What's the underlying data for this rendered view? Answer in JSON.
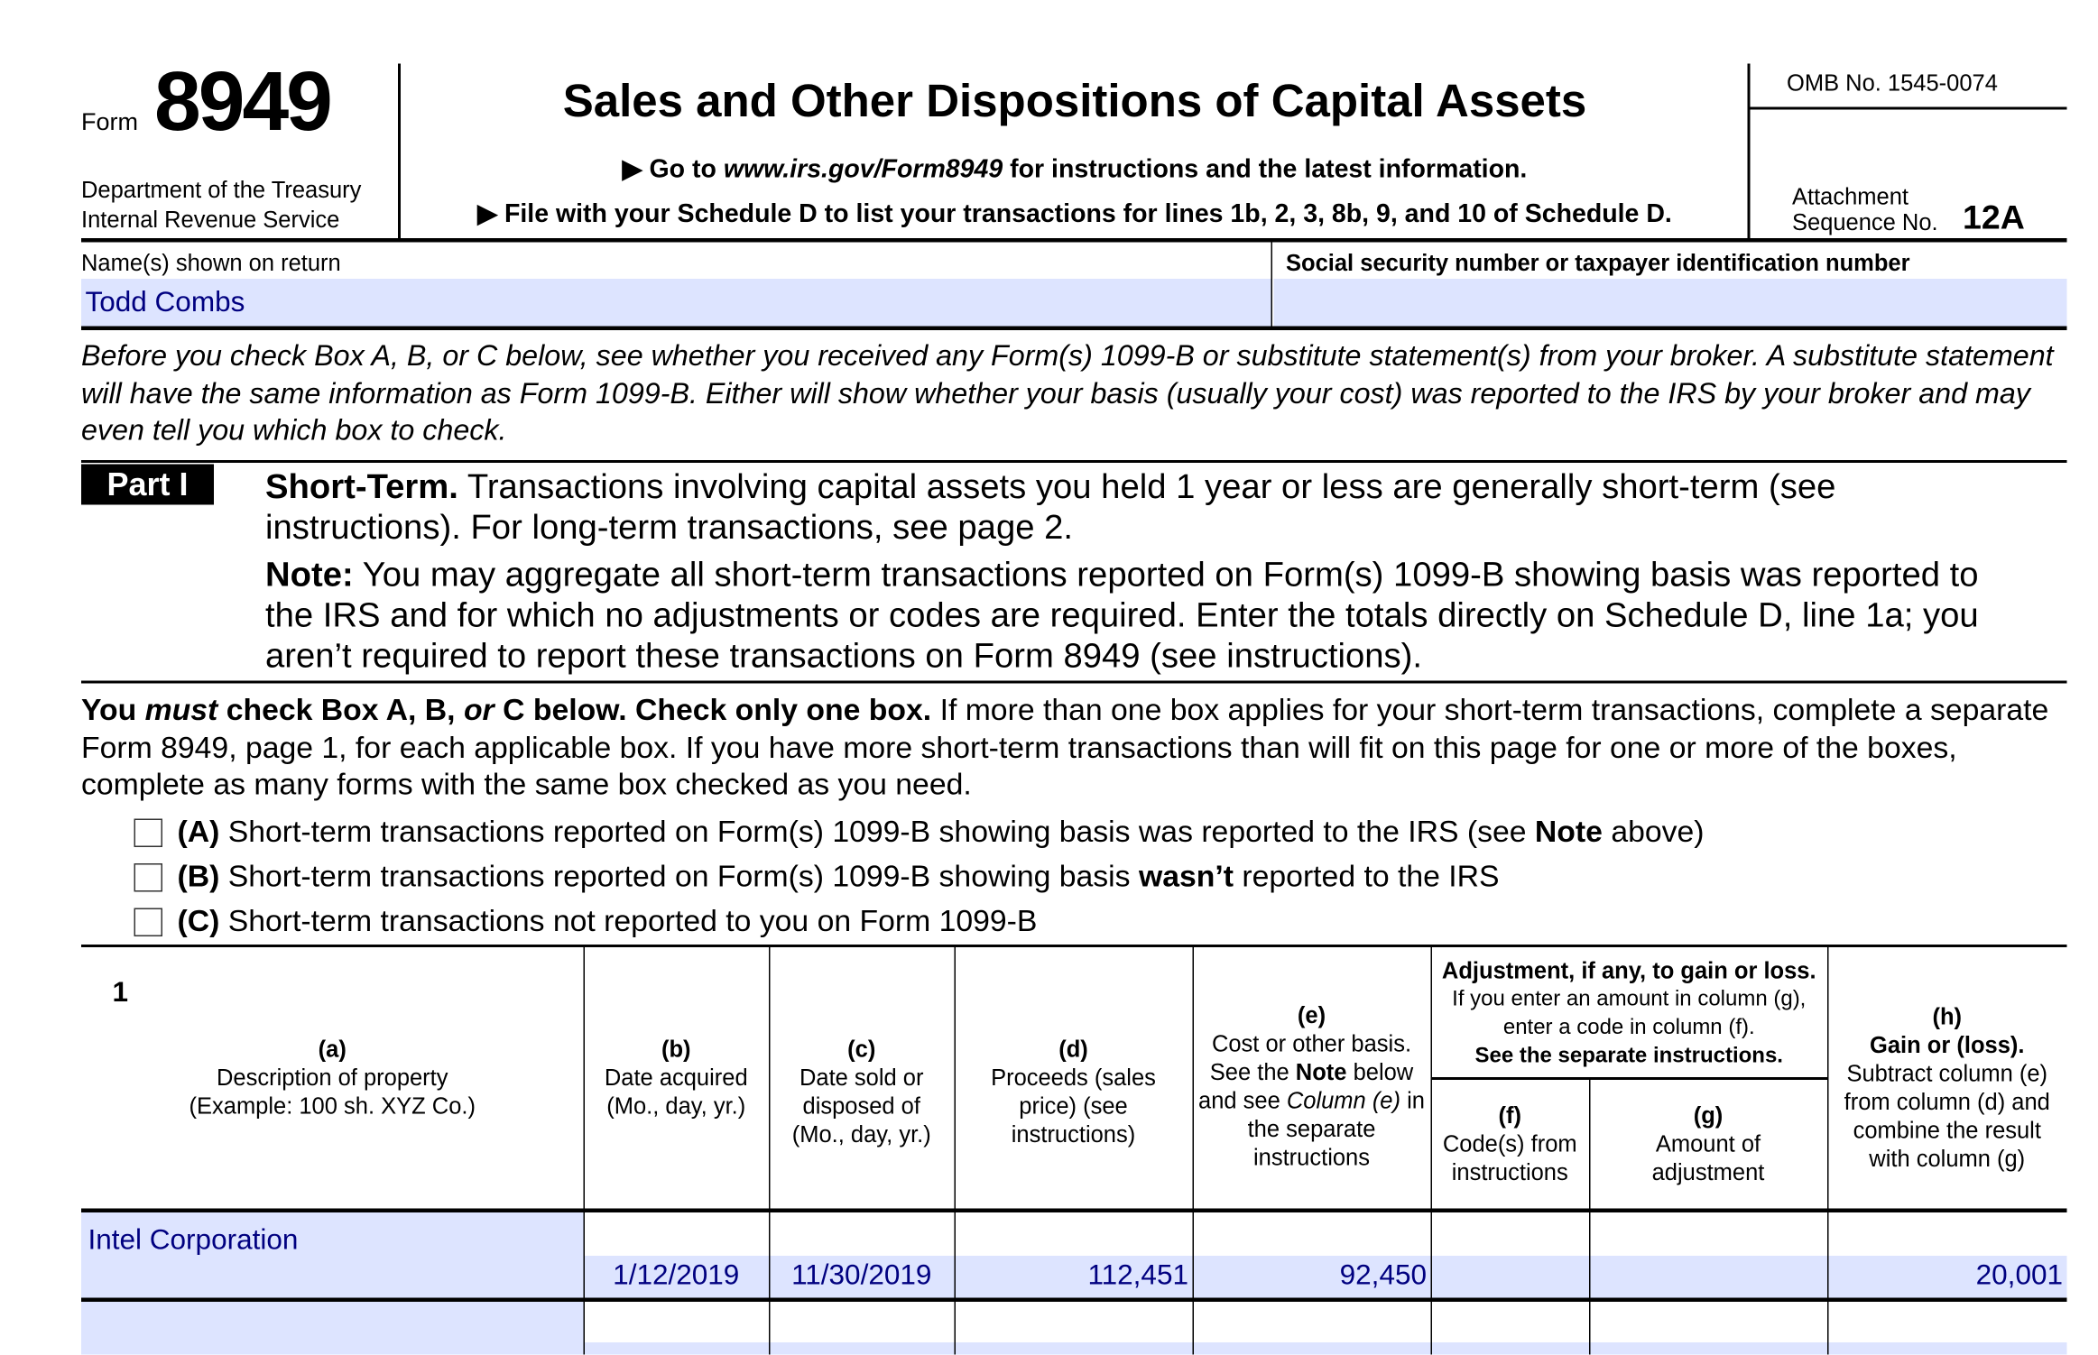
{
  "header": {
    "form_label": "Form",
    "form_number": "8949",
    "dept_line1": "Department of the Treasury",
    "dept_line2": "Internal Revenue Service",
    "title": "Sales and Other Dispositions of Capital Assets",
    "goto_prefix": "Go to",
    "goto_url": "www.irs.gov/Form8949",
    "goto_suffix": "for instructions and the latest information.",
    "file_with": "File with your Schedule D to list your transactions for lines 1b, 2, 3, 8b, 9, and 10 of Schedule D.",
    "omb": "OMB No. 1545-0074",
    "attachment": "Attachment",
    "sequence_label": "Sequence No.",
    "sequence_no": "12A"
  },
  "identity": {
    "name_label": "Name(s) shown on return",
    "name_value": "Todd Combs",
    "ssn_label": "Social security number or taxpayer identification number",
    "ssn_value": ""
  },
  "intro": "Before you check Box A, B, or C below, see whether you received any Form(s) 1099-B or substitute statement(s) from your broker. A substitute statement will have the same information as Form 1099-B. Either will show whether your basis (usually your cost) was reported to the IRS by your broker and may even tell you which box to check.",
  "part": {
    "badge": "Part I",
    "heading": "Short-Term.",
    "text": "Transactions involving capital assets you held 1 year or less are generally short-term (see instructions). For long-term transactions, see page 2.",
    "note_label": "Note:",
    "note_text": "You may aggregate all short-term transactions reported on Form(s) 1099-B showing basis was reported to the IRS and for which no adjustments or codes are required. Enter the totals directly on Schedule D, line 1a; you aren’t required to report these transactions on Form 8949 (see instructions)."
  },
  "must": {
    "p1": "You",
    "p2": "must",
    "p3": "check Box A, B,",
    "p4": "or",
    "p5": "C below. Check only one box.",
    "rest": "If more than one box applies for your short-term transactions, complete a separate Form 8949, page 1, for each applicable box. If you have more short-term transactions than will fit on this page for one or more of the boxes, complete as many forms with the same box checked as you need."
  },
  "boxes": [
    {
      "letter": "(A)",
      "text": "Short-term transactions reported on Form(s) 1099-B showing basis was reported to the IRS (see",
      "bold": "Note",
      "tail": "above)",
      "checked": false
    },
    {
      "letter": "(B)",
      "text": "Short-term transactions reported on Form(s) 1099-B showing basis",
      "bold": "wasn’t",
      "tail": "reported to the IRS",
      "checked": false
    },
    {
      "letter": "(C)",
      "text": "Short-term transactions not reported to you on Form 1099-B",
      "bold": "",
      "tail": "",
      "checked": false
    }
  ],
  "table": {
    "line": "1",
    "a": {
      "l": "(a)",
      "t": "Description of property (Example: 100 sh. XYZ Co.)"
    },
    "b": {
      "l": "(b)",
      "t": "Date acquired (Mo., day, yr.)"
    },
    "c": {
      "l": "(c)",
      "t": "Date sold or disposed of (Mo., day, yr.)"
    },
    "d": {
      "l": "(d)",
      "t": "Proceeds (sales price) (see instructions)"
    },
    "e": {
      "l": "(e)",
      "t1": "Cost or other basis. See the",
      "tb": "Note",
      "t2": "below and see",
      "ti": "Column (e)",
      "t3": "in the separate instructions"
    },
    "adj": {
      "t1": "Adjustment, if any, to gain or loss.",
      "t2": "If you enter an amount in column (g), enter a code in column (f).",
      "t3": "See the separate instructions."
    },
    "f": {
      "l": "(f)",
      "t": "Code(s) from instructions"
    },
    "g": {
      "l": "(g)",
      "t": "Amount of adjustment"
    },
    "h": {
      "l": "(h)",
      "tb": "Gain or (loss).",
      "t": "Subtract column (e) from column (d) and combine the result with column (g)"
    },
    "rows": [
      {
        "description": "Intel Corporation",
        "acquired": "1/12/2019",
        "sold": "11/30/2019",
        "proceeds": "112,451",
        "cost": "92,450",
        "code": "",
        "adjustment": "",
        "gain": "20,001"
      }
    ]
  }
}
